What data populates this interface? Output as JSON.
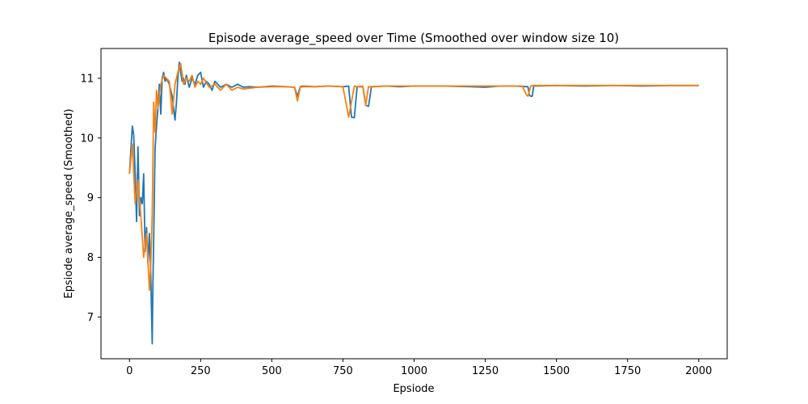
{
  "chart_data": {
    "type": "line",
    "title": "Episode average_speed over Time (Smoothed over window size 10)",
    "xlabel": "Epsiode",
    "ylabel": "Epsiode average_speed (Smoothed)",
    "xlim": [
      -100,
      2100
    ],
    "ylim": [
      6.3,
      11.5
    ],
    "xticks": [
      0,
      250,
      500,
      750,
      1000,
      1250,
      1500,
      1750,
      2000
    ],
    "yticks": [
      7,
      8,
      9,
      10,
      11
    ],
    "grid": false,
    "legend": "none",
    "series": [
      {
        "color": "#1f77b4",
        "x": [
          0,
          10,
          15,
          20,
          25,
          30,
          35,
          40,
          45,
          50,
          55,
          60,
          65,
          70,
          75,
          80,
          82,
          85,
          90,
          95,
          100,
          105,
          110,
          115,
          120,
          125,
          130,
          140,
          150,
          160,
          165,
          170,
          175,
          180,
          185,
          190,
          195,
          200,
          210,
          220,
          230,
          240,
          250,
          260,
          270,
          280,
          290,
          300,
          320,
          340,
          360,
          380,
          400,
          420,
          450,
          500,
          550,
          580,
          590,
          600,
          610,
          650,
          700,
          750,
          770,
          780,
          790,
          800,
          820,
          830,
          840,
          850,
          900,
          950,
          1000,
          1100,
          1200,
          1250,
          1300,
          1350,
          1400,
          1405,
          1410,
          1415,
          1420,
          1500,
          1600,
          1700,
          1800,
          1900,
          2000
        ],
        "y": [
          9.4,
          10.2,
          10.05,
          9.4,
          8.6,
          9.85,
          8.7,
          9.0,
          8.9,
          9.4,
          8.1,
          8.5,
          7.9,
          8.4,
          7.7,
          6.55,
          7.4,
          8.3,
          9.8,
          10.2,
          10.5,
          10.9,
          10.4,
          11.0,
          11.1,
          10.95,
          11.0,
          10.9,
          10.7,
          10.3,
          10.6,
          11.0,
          11.27,
          11.1,
          10.95,
          11.0,
          10.9,
          11.05,
          10.85,
          11.0,
          10.9,
          11.05,
          11.1,
          10.85,
          10.95,
          10.9,
          10.8,
          10.95,
          10.85,
          10.9,
          10.85,
          10.9,
          10.85,
          10.86,
          10.85,
          10.87,
          10.86,
          10.85,
          10.7,
          10.86,
          10.87,
          10.86,
          10.87,
          10.86,
          10.87,
          10.35,
          10.34,
          10.86,
          10.86,
          10.55,
          10.53,
          10.86,
          10.87,
          10.86,
          10.87,
          10.87,
          10.86,
          10.85,
          10.87,
          10.87,
          10.86,
          10.72,
          10.7,
          10.7,
          10.87,
          10.88,
          10.87,
          10.88,
          10.87,
          10.88,
          10.88
        ]
      },
      {
        "color": "#ff7f0e",
        "x": [
          0,
          10,
          20,
          30,
          40,
          50,
          60,
          70,
          75,
          80,
          85,
          90,
          95,
          100,
          110,
          120,
          130,
          140,
          150,
          160,
          170,
          180,
          190,
          200,
          210,
          220,
          230,
          240,
          250,
          260,
          280,
          300,
          320,
          340,
          360,
          380,
          400,
          450,
          500,
          550,
          580,
          590,
          600,
          610,
          650,
          700,
          750,
          770,
          780,
          790,
          800,
          820,
          830,
          840,
          850,
          900,
          1000,
          1100,
          1200,
          1300,
          1380,
          1395,
          1400,
          1410,
          1420,
          1500,
          1600,
          1700,
          1800,
          1900,
          2000
        ],
        "y": [
          9.4,
          9.9,
          8.9,
          9.3,
          8.7,
          8.0,
          8.4,
          7.45,
          7.9,
          8.7,
          10.6,
          10.1,
          10.8,
          10.5,
          10.9,
          11.05,
          11.0,
          10.95,
          10.4,
          10.9,
          11.1,
          11.25,
          10.9,
          11.0,
          10.95,
          11.05,
          10.85,
          10.95,
          10.9,
          11.0,
          10.85,
          10.9,
          10.8,
          10.9,
          10.8,
          10.85,
          10.82,
          10.85,
          10.86,
          10.86,
          10.85,
          10.62,
          10.85,
          10.86,
          10.86,
          10.87,
          10.86,
          10.35,
          10.6,
          10.87,
          10.86,
          10.87,
          10.55,
          10.86,
          10.86,
          10.87,
          10.87,
          10.87,
          10.87,
          10.87,
          10.87,
          10.72,
          10.7,
          10.87,
          10.88,
          10.88,
          10.88,
          10.88,
          10.88,
          10.88,
          10.88
        ]
      }
    ]
  }
}
